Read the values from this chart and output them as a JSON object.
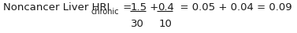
{
  "text_color": "#1a1a1a",
  "background_color": "#ffffff",
  "label_prefix": "Noncancer Liver HRI",
  "label_sub": "chronic",
  "equals1": " = ",
  "num1": "1.5",
  "den1": "30",
  "plus": " + ",
  "num2": "0.4",
  "den2": "10",
  "result": "  = 0.05 + 0.04 = 0.09",
  "fontsize_main": 9.5,
  "fontsize_sub": 7.0,
  "fig_width": 3.77,
  "fig_height": 0.42,
  "dpi": 100
}
